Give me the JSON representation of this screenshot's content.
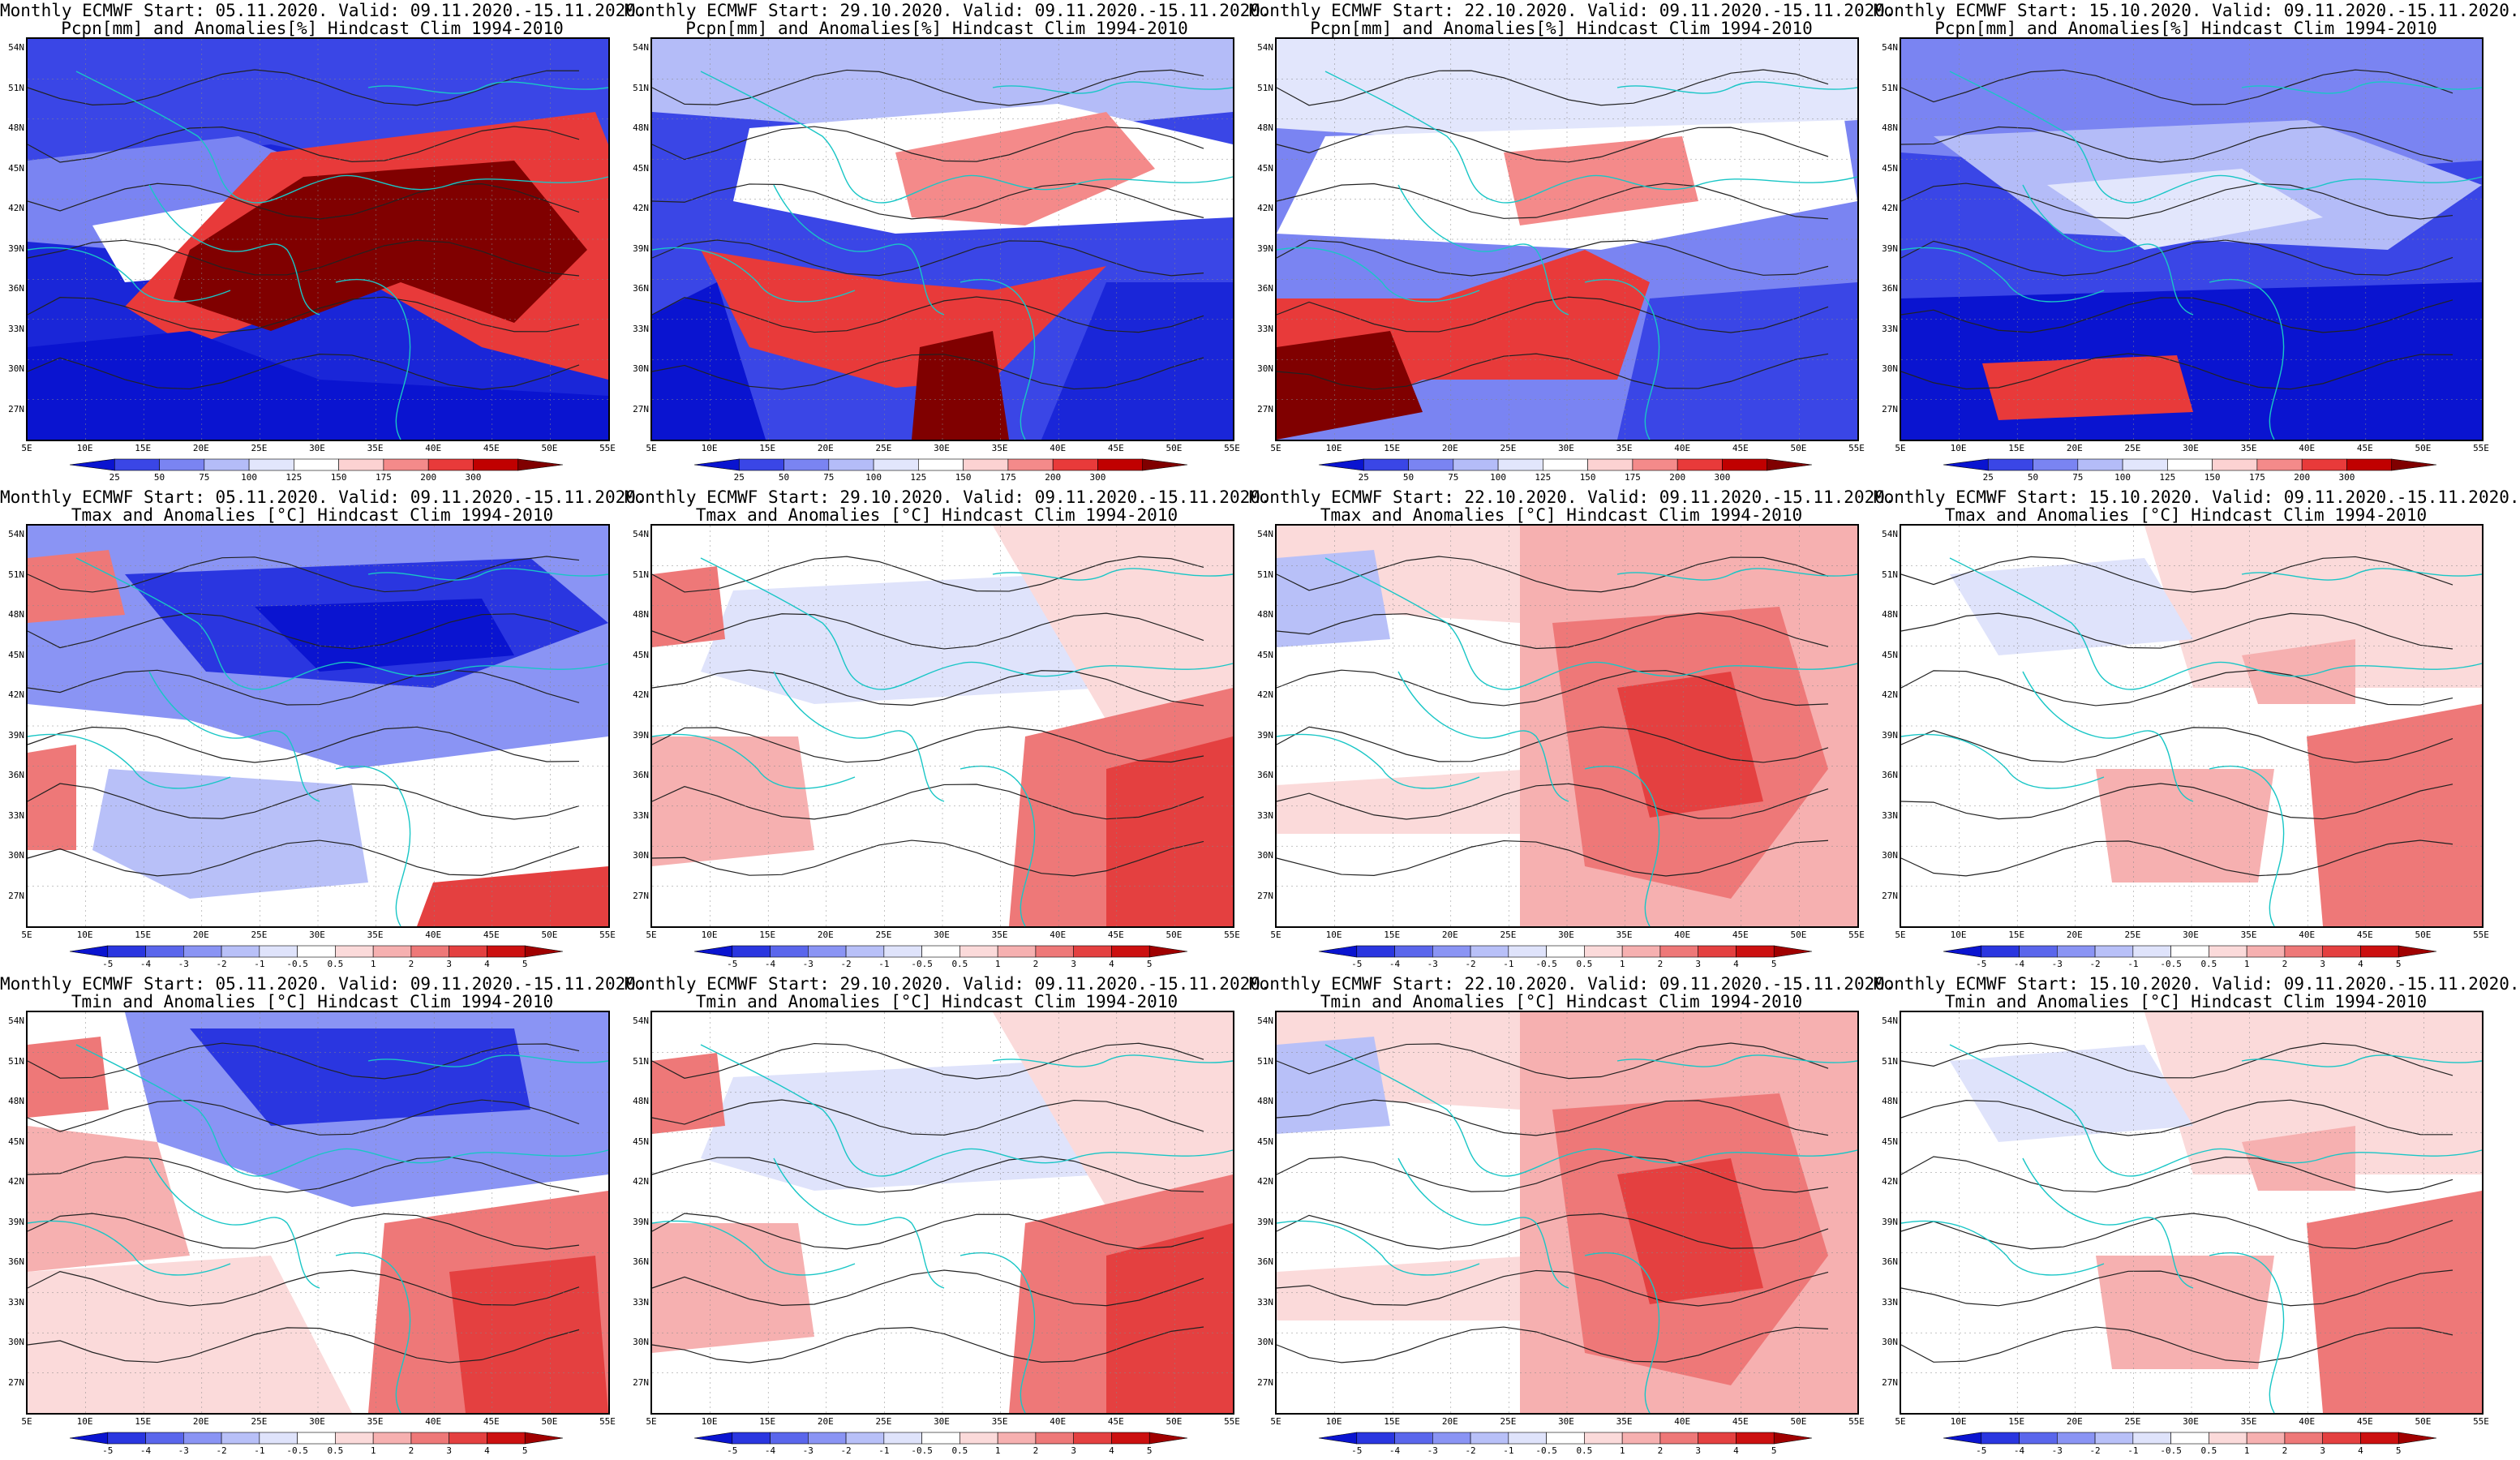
{
  "axes": {
    "lat_labels": [
      "54N",
      "51N",
      "48N",
      "45N",
      "42N",
      "39N",
      "36N",
      "33N",
      "30N",
      "27N"
    ],
    "lon_labels": [
      "5E",
      "10E",
      "15E",
      "20E",
      "25E",
      "30E",
      "35E",
      "40E",
      "45E",
      "50E",
      "55E"
    ]
  },
  "colorbars": {
    "pcpn": {
      "labels": [
        "25",
        "50",
        "75",
        "100",
        "125",
        "150",
        "175",
        "200",
        "300"
      ],
      "colors": [
        "#0a14d0",
        "#3a46e6",
        "#7a84f2",
        "#b4bcf8",
        "#e2e6fc",
        "#ffffff",
        "#fcd2d2",
        "#f48a8a",
        "#e83a3a",
        "#c00000",
        "#800000"
      ]
    },
    "temp": {
      "labels": [
        "-5",
        "-4",
        "-3",
        "-2",
        "-1",
        "-0.5",
        "0.5",
        "1",
        "2",
        "3",
        "4",
        "5"
      ],
      "colors": [
        "#0a14d0",
        "#2a36e0",
        "#5a66ec",
        "#8a94f4",
        "#b8c0f8",
        "#dfe3fb",
        "#ffffff",
        "#fbdada",
        "#f6b0b0",
        "#ee7878",
        "#e44040",
        "#cc1010",
        "#a00000"
      ]
    }
  },
  "rows": [
    {
      "variable": "Pcpn[mm] and Anomalies[%] Hindcast Clim 1994-2010",
      "type": "pcpn",
      "panels": [
        {
          "title": "Monthly ECMWF Start: 05.11.2020. Valid: 09.11.2020.-15.11.2020.",
          "theme": "wet-south"
        },
        {
          "title": "Monthly ECMWF Start: 29.10.2020. Valid: 09.11.2020.-15.11.2020.",
          "theme": "mixed-red-center"
        },
        {
          "title": "Monthly ECMWF Start: 22.10.2020. Valid: 09.11.2020.-15.11.2020.",
          "theme": "mixed-red-sw"
        },
        {
          "title": "Monthly ECMWF Start: 15.10.2020. Valid: 09.11.2020.-15.11.2020.",
          "theme": "mostly-blue"
        }
      ]
    },
    {
      "variable": "Tmax and Anomalies [°C] Hindcast Clim 1994-2010",
      "type": "temp",
      "panels": [
        {
          "title": "Monthly ECMWF Start: 05.11.2020. Valid: 09.11.2020.-15.11.2020.",
          "theme": "cold-north"
        },
        {
          "title": "Monthly ECMWF Start: 29.10.2020. Valid: 09.11.2020.-15.11.2020.",
          "theme": "warm-se"
        },
        {
          "title": "Monthly ECMWF Start: 22.10.2020. Valid: 09.11.2020.-15.11.2020.",
          "theme": "warm-east"
        },
        {
          "title": "Monthly ECMWF Start: 15.10.2020. Valid: 09.11.2020.-15.11.2020.",
          "theme": "mild-warm"
        }
      ]
    },
    {
      "variable": "Tmin and Anomalies [°C] Hindcast Clim 1994-2010",
      "type": "temp",
      "panels": [
        {
          "title": "Monthly ECMWF Start: 05.11.2020. Valid: 09.11.2020.-15.11.2020.",
          "theme": "cold-north-warm-se"
        },
        {
          "title": "Monthly ECMWF Start: 29.10.2020. Valid: 09.11.2020.-15.11.2020.",
          "theme": "warm-se"
        },
        {
          "title": "Monthly ECMWF Start: 22.10.2020. Valid: 09.11.2020.-15.11.2020.",
          "theme": "warm-east"
        },
        {
          "title": "Monthly ECMWF Start: 15.10.2020. Valid: 09.11.2020.-15.11.2020.",
          "theme": "mild-warm"
        }
      ]
    }
  ]
}
